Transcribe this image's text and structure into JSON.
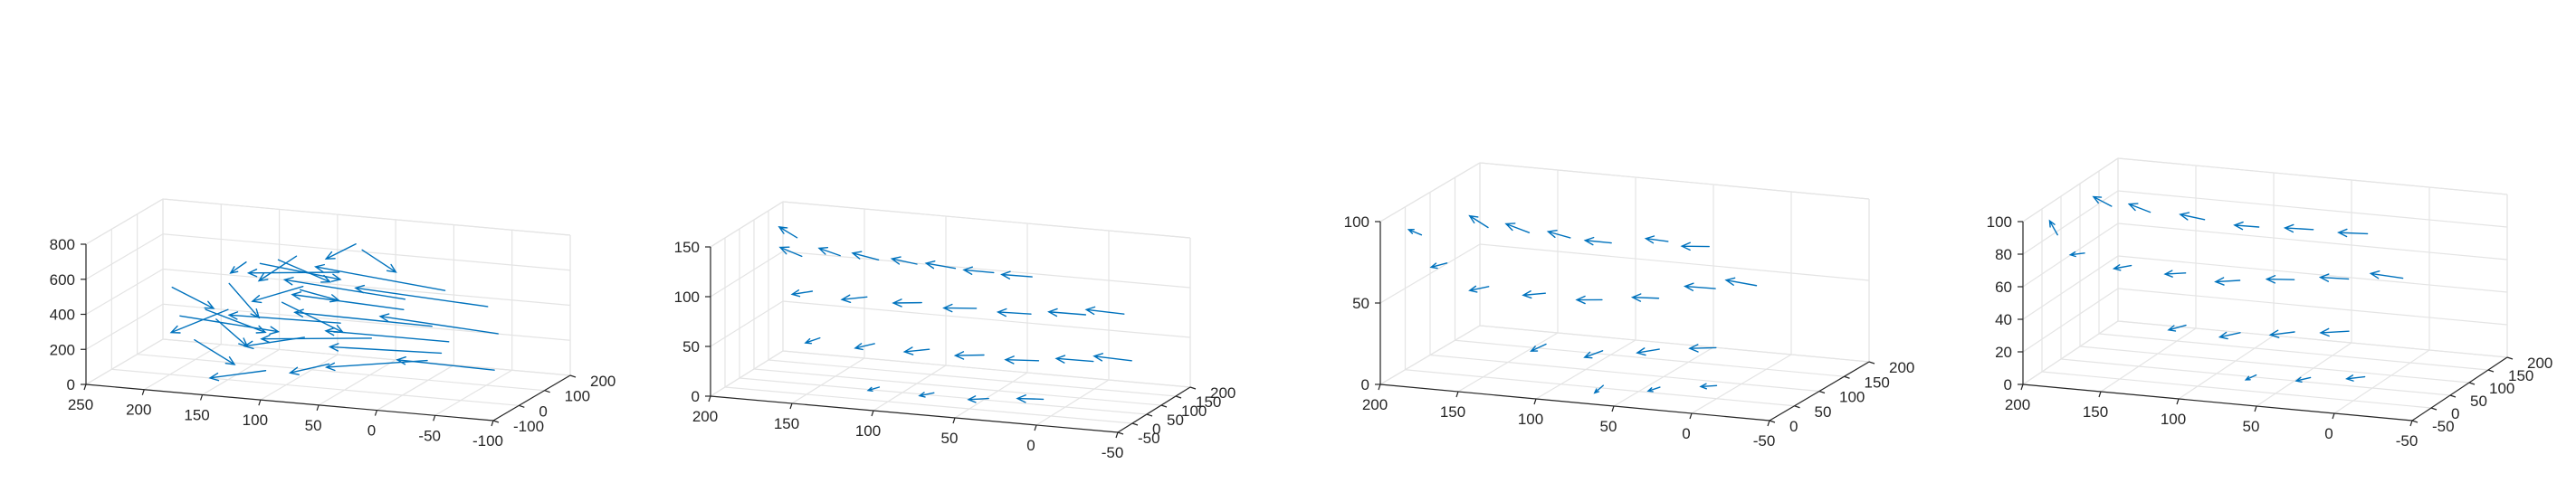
{
  "colors": {
    "arrow": "#0072bd",
    "grid": "#e4e4e4",
    "axis": "#262626"
  },
  "chart_data": [
    {
      "type": "quiver3",
      "grid": true,
      "xlim": [
        -100,
        250
      ],
      "ylim": [
        -100,
        200
      ],
      "zlim": [
        0,
        800
      ],
      "x_ticks": [
        "250",
        "200",
        "150",
        "100",
        "50",
        "0",
        "-50",
        "-100"
      ],
      "y_ticks": [
        "-100",
        "0",
        "100",
        "200"
      ],
      "z_ticks": [
        "0",
        "200",
        "400",
        "600",
        "800"
      ],
      "vectors": [
        {
          "x": 120,
          "y": 60,
          "z": 650,
          "u": -40,
          "v": 20,
          "w": -120
        },
        {
          "x": 100,
          "y": 40,
          "z": 700,
          "u": 30,
          "v": -10,
          "w": -150
        },
        {
          "x": 140,
          "y": 80,
          "z": 600,
          "u": -60,
          "v": 40,
          "w": -90
        },
        {
          "x": 90,
          "y": 20,
          "z": 550,
          "u": 50,
          "v": 30,
          "w": -140
        },
        {
          "x": 160,
          "y": 50,
          "z": 500,
          "u": -30,
          "v": -20,
          "w": -160
        },
        {
          "x": 70,
          "y": 70,
          "z": 600,
          "u": 80,
          "v": 10,
          "w": -60
        },
        {
          "x": 110,
          "y": 100,
          "z": 450,
          "u": -20,
          "v": 60,
          "w": -100
        },
        {
          "x": 150,
          "y": 0,
          "z": 400,
          "u": 40,
          "v": -40,
          "w": -120
        },
        {
          "x": 60,
          "y": 30,
          "z": 350,
          "u": 100,
          "v": 20,
          "w": -30
        },
        {
          "x": 130,
          "y": 120,
          "z": 350,
          "u": -50,
          "v": 10,
          "w": -150
        },
        {
          "x": 200,
          "y": 40,
          "z": 300,
          "u": -80,
          "v": 20,
          "w": -60
        },
        {
          "x": 180,
          "y": 90,
          "z": 250,
          "u": -40,
          "v": -60,
          "w": -80
        },
        {
          "x": 80,
          "y": -20,
          "z": 300,
          "u": 60,
          "v": 40,
          "w": -120
        },
        {
          "x": 40,
          "y": 60,
          "z": 250,
          "u": 90,
          "v": -20,
          "w": -40
        },
        {
          "x": 20,
          "y": 100,
          "z": 450,
          "u": 110,
          "v": 30,
          "w": 20
        },
        {
          "x": 30,
          "y": 140,
          "z": 350,
          "u": 100,
          "v": 20,
          "w": 10
        },
        {
          "x": 10,
          "y": 160,
          "z": 250,
          "u": 120,
          "v": 10,
          "w": 0
        },
        {
          "x": -10,
          "y": 120,
          "z": 500,
          "u": 120,
          "v": 40,
          "w": 30
        },
        {
          "x": 0,
          "y": 180,
          "z": 150,
          "u": 110,
          "v": 20,
          "w": -20
        },
        {
          "x": -40,
          "y": 150,
          "z": 400,
          "u": 120,
          "v": 30,
          "w": 10
        },
        {
          "x": -60,
          "y": 100,
          "z": 300,
          "u": 110,
          "v": 40,
          "w": 0
        },
        {
          "x": -20,
          "y": 60,
          "z": 200,
          "u": 100,
          "v": 20,
          "w": -40
        },
        {
          "x": -70,
          "y": 40,
          "z": 150,
          "u": 90,
          "v": 30,
          "w": -20
        },
        {
          "x": 50,
          "y": -60,
          "z": 200,
          "u": 40,
          "v": 30,
          "w": -100
        },
        {
          "x": -30,
          "y": -40,
          "z": 250,
          "u": 80,
          "v": -30,
          "w": -60
        },
        {
          "x": 200,
          "y": 140,
          "z": 250,
          "u": -60,
          "v": -40,
          "w": -60
        },
        {
          "x": 220,
          "y": 100,
          "z": 400,
          "u": -40,
          "v": -20,
          "w": -80
        },
        {
          "x": 170,
          "y": -40,
          "z": 250,
          "u": -30,
          "v": 20,
          "w": -140
        },
        {
          "x": 100,
          "y": -80,
          "z": 150,
          "u": 50,
          "v": 10,
          "w": -80
        },
        {
          "x": 70,
          "y": 160,
          "z": 650,
          "u": -40,
          "v": -50,
          "w": -60
        },
        {
          "x": 130,
          "y": -20,
          "z": 700,
          "u": 20,
          "v": 30,
          "w": -100
        },
        {
          "x": 60,
          "y": 90,
          "z": 750,
          "u": 30,
          "v": 20,
          "w": -120
        }
      ]
    },
    {
      "type": "quiver3",
      "grid": true,
      "xlim": [
        -50,
        200
      ],
      "ylim": [
        -50,
        200
      ],
      "zlim": [
        0,
        150
      ],
      "x_ticks": [
        "200",
        "150",
        "100",
        "50",
        "0",
        "-50"
      ],
      "y_ticks": [
        "-50",
        "0",
        "50",
        "100",
        "150",
        "200"
      ],
      "z_ticks": [
        "0",
        "50",
        "100",
        "150"
      ],
      "vectors": [
        {
          "x": 160,
          "y": 40,
          "z": 130,
          "u": 15,
          "v": 10,
          "w": 5
        },
        {
          "x": 140,
          "y": 60,
          "z": 130,
          "u": 15,
          "v": 12,
          "w": 3
        },
        {
          "x": 120,
          "y": 80,
          "z": 125,
          "u": 18,
          "v": 12,
          "w": 2
        },
        {
          "x": 100,
          "y": 100,
          "z": 120,
          "u": 18,
          "v": 15,
          "w": 0
        },
        {
          "x": 80,
          "y": 120,
          "z": 115,
          "u": 20,
          "v": 12,
          "w": 0
        },
        {
          "x": 60,
          "y": 140,
          "z": 110,
          "u": 20,
          "v": 10,
          "w": -2
        },
        {
          "x": 40,
          "y": 160,
          "z": 105,
          "u": 20,
          "v": 8,
          "w": -2
        },
        {
          "x": 150,
          "y": 20,
          "z": 100,
          "u": 15,
          "v": 15,
          "w": -8
        },
        {
          "x": 120,
          "y": 40,
          "z": 95,
          "u": 18,
          "v": 15,
          "w": -8
        },
        {
          "x": 90,
          "y": 60,
          "z": 90,
          "u": 20,
          "v": 15,
          "w": -6
        },
        {
          "x": 60,
          "y": 80,
          "z": 85,
          "u": 22,
          "v": 12,
          "w": -5
        },
        {
          "x": 30,
          "y": 100,
          "z": 80,
          "u": 22,
          "v": 10,
          "w": -3
        },
        {
          "x": 0,
          "y": 120,
          "z": 80,
          "u": 24,
          "v": 8,
          "w": -2
        },
        {
          "x": -20,
          "y": 140,
          "z": 80,
          "u": 24,
          "v": 5,
          "w": 0
        },
        {
          "x": 140,
          "y": -10,
          "z": 60,
          "u": 12,
          "v": 18,
          "w": -10
        },
        {
          "x": 110,
          "y": 10,
          "z": 55,
          "u": 15,
          "v": 18,
          "w": -10
        },
        {
          "x": 80,
          "y": 30,
          "z": 50,
          "u": 18,
          "v": 16,
          "w": -8
        },
        {
          "x": 50,
          "y": 50,
          "z": 45,
          "u": 20,
          "v": 14,
          "w": -6
        },
        {
          "x": 20,
          "y": 70,
          "z": 40,
          "u": 22,
          "v": 10,
          "w": -4
        },
        {
          "x": -10,
          "y": 90,
          "z": 40,
          "u": 24,
          "v": 8,
          "w": -2
        },
        {
          "x": -30,
          "y": 110,
          "z": 40,
          "u": 24,
          "v": 6,
          "w": 0
        },
        {
          "x": 100,
          "y": -30,
          "z": 20,
          "u": 10,
          "v": 18,
          "w": -8
        },
        {
          "x": 70,
          "y": -10,
          "z": 15,
          "u": 12,
          "v": 18,
          "w": -8
        },
        {
          "x": 40,
          "y": 10,
          "z": 10,
          "u": 15,
          "v": 15,
          "w": -6
        },
        {
          "x": 10,
          "y": 30,
          "z": 10,
          "u": 18,
          "v": 12,
          "w": -4
        },
        {
          "x": 170,
          "y": 80,
          "z": 140,
          "u": 12,
          "v": 6,
          "w": 8
        }
      ]
    },
    {
      "type": "quiver3",
      "grid": true,
      "xlim": [
        -50,
        200
      ],
      "ylim": [
        0,
        200
      ],
      "zlim": [
        0,
        100
      ],
      "x_ticks": [
        "200",
        "150",
        "100",
        "50",
        "0",
        "-50"
      ],
      "y_ticks": [
        "0",
        "50",
        "100",
        "150",
        "200"
      ],
      "z_ticks": [
        "0",
        "50",
        "100"
      ],
      "vectors": [
        {
          "x": 150,
          "y": 60,
          "z": 90,
          "u": 15,
          "v": 10,
          "w": 4
        },
        {
          "x": 130,
          "y": 80,
          "z": 85,
          "u": 18,
          "v": 10,
          "w": 2
        },
        {
          "x": 110,
          "y": 100,
          "z": 80,
          "u": 18,
          "v": 12,
          "w": 0
        },
        {
          "x": 90,
          "y": 120,
          "z": 75,
          "u": 20,
          "v": 10,
          "w": -2
        },
        {
          "x": 60,
          "y": 140,
          "z": 75,
          "u": 18,
          "v": 12,
          "w": -2
        },
        {
          "x": 40,
          "y": 160,
          "z": 70,
          "u": 20,
          "v": 8,
          "w": -3
        },
        {
          "x": 180,
          "y": 20,
          "z": 90,
          "u": 12,
          "v": 12,
          "w": 0
        },
        {
          "x": 170,
          "y": 40,
          "z": 70,
          "u": 14,
          "v": 12,
          "w": -6
        },
        {
          "x": 140,
          "y": 30,
          "z": 60,
          "u": 16,
          "v": 12,
          "w": -6
        },
        {
          "x": 110,
          "y": 50,
          "z": 55,
          "u": 18,
          "v": 12,
          "w": -5
        },
        {
          "x": 80,
          "y": 70,
          "z": 50,
          "u": 20,
          "v": 12,
          "w": -4
        },
        {
          "x": 50,
          "y": 90,
          "z": 50,
          "u": 20,
          "v": 10,
          "w": -3
        },
        {
          "x": 20,
          "y": 110,
          "z": 55,
          "u": 22,
          "v": 8,
          "w": -2
        },
        {
          "x": 0,
          "y": 130,
          "z": 55,
          "u": 22,
          "v": 8,
          "w": 0
        },
        {
          "x": 100,
          "y": 20,
          "z": 30,
          "u": 14,
          "v": 14,
          "w": -8
        },
        {
          "x": 70,
          "y": 40,
          "z": 25,
          "u": 16,
          "v": 14,
          "w": -8
        },
        {
          "x": 40,
          "y": 60,
          "z": 25,
          "u": 18,
          "v": 12,
          "w": -6
        },
        {
          "x": 10,
          "y": 80,
          "z": 25,
          "u": 20,
          "v": 10,
          "w": -4
        },
        {
          "x": 60,
          "y": 10,
          "z": 10,
          "u": 10,
          "v": 14,
          "w": -8
        },
        {
          "x": 30,
          "y": 30,
          "z": 8,
          "u": 12,
          "v": 14,
          "w": -6
        },
        {
          "x": 0,
          "y": 50,
          "z": 8,
          "u": 14,
          "v": 12,
          "w": -4
        }
      ]
    },
    {
      "type": "quiver3",
      "grid": true,
      "xlim": [
        -50,
        200
      ],
      "ylim": [
        -50,
        200
      ],
      "zlim": [
        0,
        100
      ],
      "x_ticks": [
        "200",
        "150",
        "100",
        "50",
        "0",
        "-50"
      ],
      "y_ticks": [
        "-50",
        "0",
        "50",
        "100",
        "150",
        "200"
      ],
      "z_ticks": [
        "0",
        "20",
        "40",
        "60",
        "80",
        "100"
      ],
      "vectors": [
        {
          "x": 170,
          "y": 60,
          "z": 95,
          "u": 14,
          "v": 10,
          "w": 3
        },
        {
          "x": 150,
          "y": 80,
          "z": 90,
          "u": 16,
          "v": 10,
          "w": 2
        },
        {
          "x": 120,
          "y": 100,
          "z": 85,
          "u": 18,
          "v": 10,
          "w": 0
        },
        {
          "x": 90,
          "y": 120,
          "z": 80,
          "u": 18,
          "v": 10,
          "w": -2
        },
        {
          "x": 60,
          "y": 140,
          "z": 78,
          "u": 20,
          "v": 8,
          "w": -2
        },
        {
          "x": 30,
          "y": 160,
          "z": 75,
          "u": 20,
          "v": 6,
          "w": -2
        },
        {
          "x": 190,
          "y": 0,
          "z": 85,
          "u": 8,
          "v": 12,
          "w": 6
        },
        {
          "x": 180,
          "y": 30,
          "z": 70,
          "u": 12,
          "v": 12,
          "w": -4
        },
        {
          "x": 150,
          "y": 30,
          "z": 65,
          "u": 14,
          "v": 12,
          "w": -5
        },
        {
          "x": 120,
          "y": 50,
          "z": 60,
          "u": 16,
          "v": 12,
          "w": -4
        },
        {
          "x": 90,
          "y": 70,
          "z": 55,
          "u": 18,
          "v": 10,
          "w": -4
        },
        {
          "x": 60,
          "y": 90,
          "z": 55,
          "u": 20,
          "v": 10,
          "w": -3
        },
        {
          "x": 30,
          "y": 110,
          "z": 55,
          "u": 20,
          "v": 8,
          "w": -2
        },
        {
          "x": 0,
          "y": 130,
          "z": 55,
          "u": 22,
          "v": 6,
          "w": 0
        },
        {
          "x": 110,
          "y": 10,
          "z": 35,
          "u": 14,
          "v": 12,
          "w": -6
        },
        {
          "x": 80,
          "y": 30,
          "z": 30,
          "u": 16,
          "v": 12,
          "w": -6
        },
        {
          "x": 50,
          "y": 50,
          "z": 30,
          "u": 18,
          "v": 10,
          "w": -5
        },
        {
          "x": 20,
          "y": 70,
          "z": 30,
          "u": 20,
          "v": 8,
          "w": -4
        },
        {
          "x": 60,
          "y": -10,
          "z": 12,
          "u": 10,
          "v": 14,
          "w": -6
        },
        {
          "x": 30,
          "y": 10,
          "z": 10,
          "u": 12,
          "v": 12,
          "w": -5
        },
        {
          "x": 0,
          "y": 30,
          "z": 10,
          "u": 14,
          "v": 10,
          "w": -4
        }
      ]
    }
  ]
}
